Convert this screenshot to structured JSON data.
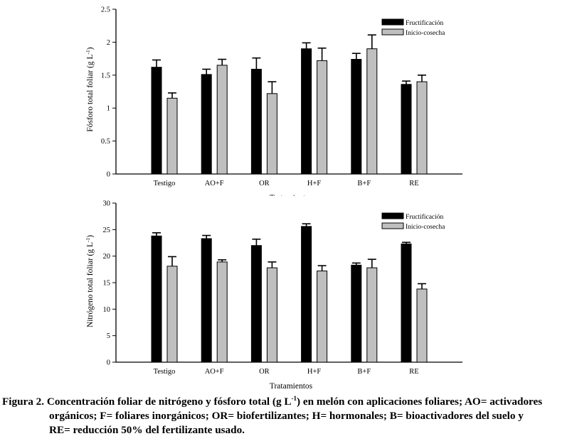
{
  "chart_data": [
    {
      "type": "bar",
      "ylabel_main": "Fósforo total foliar (g L",
      "ylabel_sup": "-1",
      "ylabel_end": ")",
      "xlabel": "Tratamientos",
      "ylim": [
        0,
        2.5
      ],
      "yticks": [
        "0",
        "0.5",
        "1",
        "1.5",
        "2",
        "2.5"
      ],
      "ytick_values": [
        0,
        0.5,
        1,
        1.5,
        2,
        2.5
      ],
      "categories": [
        "Testigo",
        "AO+F",
        "OR",
        "H+F",
        "B+F",
        "RE"
      ],
      "legend_position": "top-right",
      "series": [
        {
          "name": "Fructificación",
          "color": "#000000",
          "values": [
            1.62,
            1.51,
            1.59,
            1.9,
            1.74,
            1.36
          ],
          "errors": [
            0.11,
            0.08,
            0.17,
            0.09,
            0.09,
            0.05
          ]
        },
        {
          "name": "Inicio-cosecha",
          "color": "#bfbfbf",
          "values": [
            1.15,
            1.65,
            1.22,
            1.72,
            1.9,
            1.4
          ],
          "errors": [
            0.08,
            0.09,
            0.18,
            0.19,
            0.21,
            0.1
          ]
        }
      ]
    },
    {
      "type": "bar",
      "ylabel_main": "Nitrógeno total foliar (g L",
      "ylabel_sup": "-1",
      "ylabel_end": ")",
      "xlabel": "Tratamientos",
      "ylim": [
        0,
        30
      ],
      "yticks": [
        "0",
        "5",
        "10",
        "15",
        "20",
        "25",
        "30"
      ],
      "ytick_values": [
        0,
        5,
        10,
        15,
        20,
        25,
        30
      ],
      "categories": [
        "Testigo",
        "AO+F",
        "OR",
        "H+F",
        "B+F",
        "RE"
      ],
      "legend_position": "top-right",
      "series": [
        {
          "name": "Fructificación",
          "color": "#000000",
          "values": [
            23.8,
            23.3,
            22.0,
            25.6,
            18.3,
            22.3
          ],
          "errors": [
            0.6,
            0.6,
            1.2,
            0.5,
            0.4,
            0.3
          ]
        },
        {
          "name": "Inicio-cosecha",
          "color": "#bfbfbf",
          "values": [
            18.1,
            18.9,
            17.8,
            17.2,
            17.8,
            13.8
          ],
          "errors": [
            1.8,
            0.4,
            1.1,
            1.0,
            1.6,
            1.0
          ]
        }
      ]
    }
  ],
  "caption": {
    "label": "Figura 2.",
    "line1_a": "Concentración foliar de nitrógeno y fósforo total (g L",
    "line1_sup": "-1",
    "line1_b": ") en melón con aplicaciones foliares; AO= activadores",
    "line2": "orgánicos; F= foliares inorgánicos; OR= biofertilizantes; H= hormonales; B= bioactivadores del suelo y",
    "line3": "RE= reducción 50% del fertilizante usado."
  }
}
